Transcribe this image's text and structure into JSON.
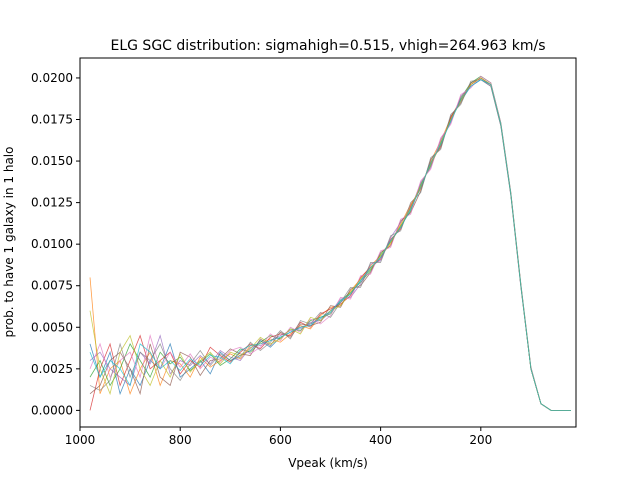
{
  "chart_data": {
    "type": "line",
    "title": "ELG SGC distribution: sigmahigh=0.515, vhigh=264.963 km/s",
    "xlabel": "Vpeak (km/s)",
    "ylabel": "prob. to have 1 galaxy in 1 halo",
    "xlim": [
      1000,
      10
    ],
    "ylim": [
      -0.001,
      0.0212
    ],
    "x_reversed": true,
    "xticks": [
      1000,
      800,
      600,
      400,
      200
    ],
    "xtick_labels": [
      "1000",
      "800",
      "600",
      "400",
      "200"
    ],
    "yticks": [
      0.0,
      0.0025,
      0.005,
      0.0075,
      0.01,
      0.0125,
      0.015,
      0.0175,
      0.02
    ],
    "ytick_labels": [
      "0.0000",
      "0.0025",
      "0.0050",
      "0.0075",
      "0.0100",
      "0.0125",
      "0.0150",
      "0.0175",
      "0.0200"
    ],
    "grid": false,
    "legend": "none",
    "x": [
      980,
      960,
      940,
      920,
      900,
      880,
      860,
      840,
      820,
      800,
      780,
      760,
      740,
      720,
      700,
      680,
      660,
      640,
      620,
      600,
      580,
      560,
      540,
      520,
      500,
      480,
      460,
      440,
      420,
      400,
      380,
      360,
      340,
      320,
      300,
      280,
      260,
      240,
      220,
      200,
      180,
      160,
      140,
      120,
      100,
      80,
      60,
      40,
      20
    ],
    "series": [
      {
        "color": "#1f77b4",
        "values": [
          0.004,
          0.002,
          0.0035,
          0.001,
          0.0025,
          0.0015,
          0.003,
          0.0025,
          0.004,
          0.002,
          0.0025,
          0.003,
          0.0022,
          0.0035,
          0.003,
          0.0033,
          0.0036,
          0.0042,
          0.0038,
          0.0044,
          0.0047,
          0.005,
          0.0052,
          0.0055,
          0.006,
          0.0065,
          0.007,
          0.0078,
          0.0085,
          0.0092,
          0.0102,
          0.011,
          0.0122,
          0.0135,
          0.0148,
          0.016,
          0.0175,
          0.0186,
          0.0195,
          0.0199,
          0.0196,
          0.0172,
          0.013,
          0.0075,
          0.0025,
          0.0004,
          0.0,
          0.0,
          0.0
        ]
      },
      {
        "color": "#ff7f0e",
        "values": [
          0.008,
          0.001,
          0.0025,
          0.003,
          0.001,
          0.0025,
          0.0035,
          0.0015,
          0.003,
          0.0028,
          0.002,
          0.0032,
          0.0026,
          0.003,
          0.0034,
          0.0031,
          0.0039,
          0.004,
          0.0043,
          0.0041,
          0.0046,
          0.0051,
          0.0049,
          0.0057,
          0.0062,
          0.0063,
          0.0072,
          0.0079,
          0.0087,
          0.0093,
          0.01,
          0.0112,
          0.0124,
          0.0133,
          0.015,
          0.0162,
          0.0176,
          0.0187,
          0.0196,
          0.02,
          0.0196,
          0.0172,
          0.013,
          0.0075,
          0.0025,
          0.0004,
          0.0,
          0.0,
          0.0
        ]
      },
      {
        "color": "#2ca02c",
        "values": [
          0.002,
          0.003,
          0.0015,
          0.0025,
          0.004,
          0.003,
          0.002,
          0.0035,
          0.0028,
          0.0032,
          0.0024,
          0.0029,
          0.0034,
          0.0027,
          0.0031,
          0.0037,
          0.0035,
          0.0041,
          0.0045,
          0.0043,
          0.0049,
          0.0048,
          0.0054,
          0.0056,
          0.0058,
          0.0066,
          0.0071,
          0.0077,
          0.0084,
          0.0094,
          0.0101,
          0.0111,
          0.012,
          0.0136,
          0.0147,
          0.0161,
          0.0174,
          0.0188,
          0.0197,
          0.0201,
          0.0197,
          0.0173,
          0.0131,
          0.0076,
          0.0026,
          0.0004,
          0.0,
          0.0,
          0.0
        ]
      },
      {
        "color": "#d62728",
        "values": [
          0.0,
          0.0025,
          0.004,
          0.0015,
          0.003,
          0.0045,
          0.0025,
          0.003,
          0.0035,
          0.0022,
          0.003,
          0.0026,
          0.0038,
          0.0033,
          0.0029,
          0.0035,
          0.004,
          0.0037,
          0.0044,
          0.0046,
          0.0045,
          0.0053,
          0.005,
          0.0058,
          0.0061,
          0.0064,
          0.0069,
          0.008,
          0.0086,
          0.0091,
          0.0103,
          0.0109,
          0.0123,
          0.0134,
          0.0149,
          0.0159,
          0.0176,
          0.0187,
          0.0196,
          0.02,
          0.0196,
          0.0172,
          0.013,
          0.0075,
          0.0025,
          0.0004,
          0.0,
          0.0,
          0.0
        ]
      },
      {
        "color": "#9467bd",
        "values": [
          0.003,
          0.0035,
          0.0025,
          0.002,
          0.0015,
          0.0035,
          0.0028,
          0.0045,
          0.0022,
          0.003,
          0.0027,
          0.0033,
          0.0028,
          0.0036,
          0.0032,
          0.003,
          0.0038,
          0.0039,
          0.0042,
          0.0045,
          0.0048,
          0.0049,
          0.0053,
          0.0054,
          0.0059,
          0.0067,
          0.0068,
          0.0076,
          0.0088,
          0.009,
          0.0104,
          0.0113,
          0.0121,
          0.0137,
          0.0146,
          0.0163,
          0.0173,
          0.0189,
          0.0195,
          0.0199,
          0.0195,
          0.0171,
          0.0129,
          0.0074,
          0.0025,
          0.0004,
          0.0,
          0.0,
          0.0
        ]
      },
      {
        "color": "#8c564b",
        "values": [
          0.001,
          0.0015,
          0.003,
          0.0035,
          0.0025,
          0.001,
          0.004,
          0.002,
          0.0015,
          0.0035,
          0.0032,
          0.0021,
          0.003,
          0.0031,
          0.0037,
          0.0034,
          0.0033,
          0.0043,
          0.0039,
          0.0047,
          0.0044,
          0.0052,
          0.0051,
          0.0053,
          0.0063,
          0.0062,
          0.0073,
          0.0075,
          0.0083,
          0.0095,
          0.0099,
          0.0114,
          0.0119,
          0.0132,
          0.0151,
          0.0158,
          0.0177,
          0.0185,
          0.0197,
          0.02,
          0.0196,
          0.0172,
          0.013,
          0.0075,
          0.0025,
          0.0004,
          0.0,
          0.0,
          0.0
        ]
      },
      {
        "color": "#e377c2",
        "values": [
          0.0025,
          0.004,
          0.002,
          0.003,
          0.0035,
          0.002,
          0.0045,
          0.0025,
          0.0035,
          0.0026,
          0.0034,
          0.0025,
          0.0032,
          0.0029,
          0.0036,
          0.0038,
          0.0034,
          0.0038,
          0.0046,
          0.0042,
          0.005,
          0.0047,
          0.0055,
          0.0052,
          0.0057,
          0.0068,
          0.0067,
          0.0081,
          0.0082,
          0.0096,
          0.0098,
          0.0115,
          0.0118,
          0.0138,
          0.0145,
          0.0164,
          0.0172,
          0.019,
          0.0194,
          0.0201,
          0.0197,
          0.0173,
          0.0131,
          0.0076,
          0.0026,
          0.0004,
          0.0,
          0.0,
          0.0
        ]
      },
      {
        "color": "#7f7f7f",
        "values": [
          0.0015,
          0.0012,
          0.0018,
          0.004,
          0.002,
          0.0035,
          0.003,
          0.004,
          0.0025,
          0.0018,
          0.0028,
          0.0036,
          0.0027,
          0.0034,
          0.003,
          0.0032,
          0.0041,
          0.0036,
          0.0041,
          0.0048,
          0.0043,
          0.0054,
          0.0052,
          0.0059,
          0.0056,
          0.0065,
          0.0074,
          0.0074,
          0.0089,
          0.0089,
          0.0105,
          0.0108,
          0.0125,
          0.0131,
          0.0152,
          0.0157,
          0.0178,
          0.0184,
          0.0198,
          0.0199,
          0.0195,
          0.0171,
          0.0129,
          0.0074,
          0.0025,
          0.0004,
          0.0,
          0.0,
          0.0
        ]
      },
      {
        "color": "#bcbd22",
        "values": [
          0.006,
          0.0025,
          0.001,
          0.0035,
          0.0045,
          0.0025,
          0.0015,
          0.003,
          0.002,
          0.0034,
          0.0023,
          0.003,
          0.0035,
          0.0028,
          0.0035,
          0.0033,
          0.0037,
          0.0044,
          0.004,
          0.0043,
          0.0049,
          0.0046,
          0.0056,
          0.0054,
          0.006,
          0.0063,
          0.0071,
          0.0079,
          0.0085,
          0.0093,
          0.0101,
          0.0111,
          0.0122,
          0.0135,
          0.0148,
          0.016,
          0.0175,
          0.0186,
          0.0196,
          0.02,
          0.0196,
          0.0172,
          0.013,
          0.0075,
          0.0025,
          0.0004,
          0.0,
          0.0,
          0.0
        ]
      },
      {
        "color": "#17becf",
        "values": [
          0.0035,
          0.002,
          0.003,
          0.0025,
          0.0015,
          0.004,
          0.0035,
          0.0025,
          0.003,
          0.0024,
          0.0031,
          0.0027,
          0.0033,
          0.0032,
          0.0028,
          0.0036,
          0.0039,
          0.004,
          0.0042,
          0.0044,
          0.0047,
          0.005,
          0.0051,
          0.0056,
          0.0059,
          0.0066,
          0.007,
          0.0078,
          0.0086,
          0.0092,
          0.0102,
          0.011,
          0.0121,
          0.0134,
          0.0149,
          0.016,
          0.0174,
          0.0187,
          0.0195,
          0.0199,
          0.0196,
          0.0172,
          0.013,
          0.0075,
          0.0025,
          0.0004,
          0.0,
          0.0,
          0.0
        ]
      }
    ]
  }
}
